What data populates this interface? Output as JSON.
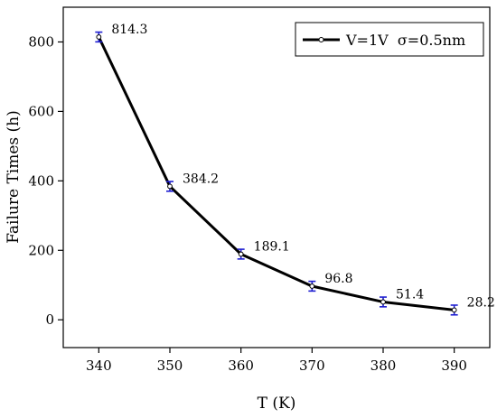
{
  "chart_data": {
    "type": "line",
    "xlabel": "T (K)",
    "ylabel": "Failure Times (h)",
    "x": [
      340,
      350,
      360,
      370,
      380,
      390
    ],
    "xticks": [
      "340",
      "350",
      "360",
      "370",
      "380",
      "390"
    ],
    "yticks": [
      "0",
      "200",
      "400",
      "600",
      "800"
    ],
    "xlim": [
      335,
      395
    ],
    "ylim": [
      -80,
      900
    ],
    "grid": false,
    "legend_position": "top-right",
    "series": [
      {
        "name": "V=1V  σ=0.5nm",
        "values": [
          814.3,
          384.2,
          189.1,
          96.8,
          51.4,
          28.2
        ],
        "error": [
          14,
          14,
          14,
          14,
          14,
          14
        ],
        "data_labels": [
          "814.3",
          "384.2",
          "189.1",
          "96.8",
          "51.4",
          "28.2"
        ]
      }
    ],
    "line_color": "#000000",
    "errorbar_color": "#1f1fd1"
  }
}
